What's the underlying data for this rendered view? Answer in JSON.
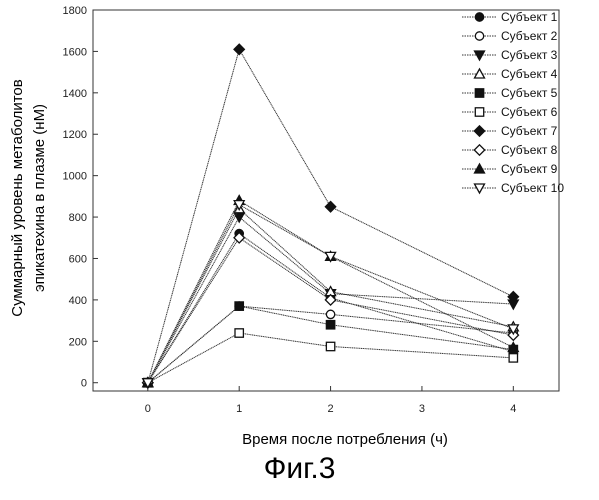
{
  "figure_caption": "Фиг.3",
  "chart_data": {
    "type": "line",
    "title": "",
    "xlabel": "Время после потребления (ч)",
    "ylabel_line1": "Суммарный уровень метаболитов",
    "ylabel_line2": "эпикатехина в плазме (нМ)",
    "x_ticks": [
      "0",
      "1",
      "2",
      "3",
      "4"
    ],
    "y_ticks": [
      "0",
      "200",
      "400",
      "600",
      "800",
      "1000",
      "1200",
      "1400",
      "1600",
      "1800"
    ],
    "xlim": [
      -0.6,
      4.5
    ],
    "ylim": [
      -40,
      1800
    ],
    "grid": false,
    "legend_position": "top-right",
    "x": [
      0,
      1,
      2,
      4
    ],
    "series": [
      {
        "name": "Субъект  1",
        "marker": "circle-filled",
        "values": [
          0,
          720,
          410,
          150
        ]
      },
      {
        "name": "Субъект  2",
        "marker": "circle-open",
        "values": [
          0,
          370,
          330,
          240
        ]
      },
      {
        "name": "Субъект  3",
        "marker": "triangle-down-filled",
        "values": [
          0,
          800,
          430,
          380
        ]
      },
      {
        "name": "Субъект  4",
        "marker": "triangle-up-open",
        "values": [
          0,
          840,
          440,
          270
        ]
      },
      {
        "name": "Субъект  5",
        "marker": "square-filled",
        "values": [
          0,
          370,
          280,
          160
        ]
      },
      {
        "name": "Субъект  6",
        "marker": "square-open",
        "values": [
          0,
          240,
          175,
          120
        ]
      },
      {
        "name": "Субъект  7",
        "marker": "diamond-filled",
        "values": [
          0,
          1610,
          850,
          415
        ]
      },
      {
        "name": "Субъект  8",
        "marker": "diamond-open",
        "values": [
          0,
          700,
          400,
          230
        ]
      },
      {
        "name": "Субъект  9",
        "marker": "triangle-up-filled",
        "values": [
          0,
          880,
          610,
          170
        ]
      },
      {
        "name": "Субъект  10",
        "marker": "triangle-down-open",
        "values": [
          0,
          860,
          610,
          260
        ]
      }
    ]
  }
}
